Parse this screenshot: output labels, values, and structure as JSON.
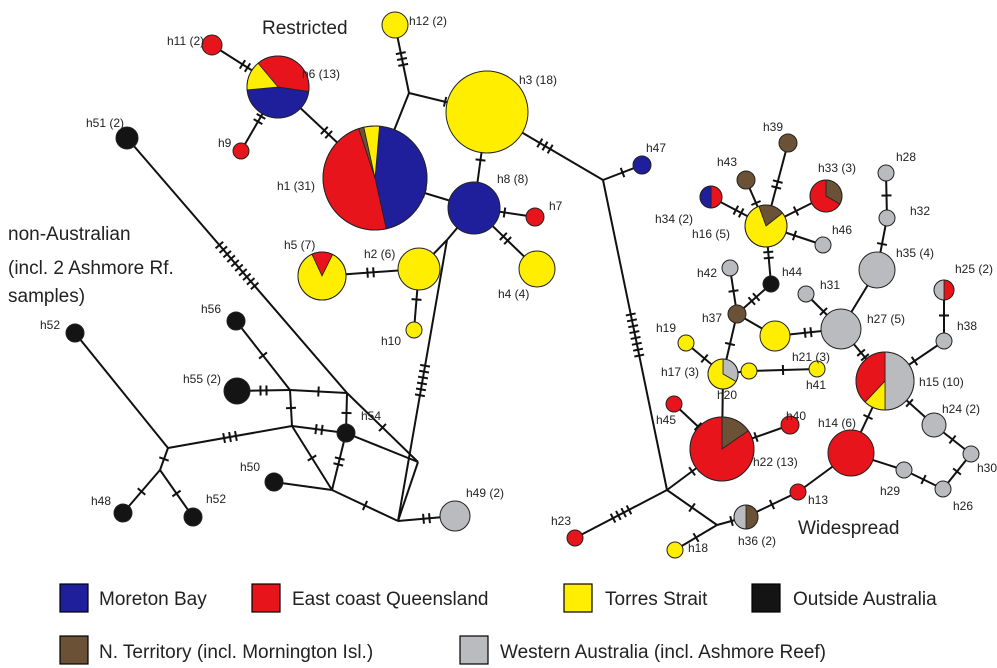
{
  "colors": {
    "Moreton Bay": "#1f1f9c",
    "East coast Queensland": "#e8141b",
    "Torres Strait": "#ffee00",
    "Outside Australia": "#141414",
    "N. Territory": "#6b5236",
    "Western Australia": "#b9bbbe"
  },
  "group_labels": {
    "restricted": "Restricted",
    "non_australian": [
      "non-Australian",
      "(incl. 2 Ashmore Rf.",
      "samples)"
    ],
    "widespread": "Widespread"
  },
  "haplotypes": [
    {
      "id": "h1",
      "label": "h1 (31)",
      "n": 31,
      "shares": {
        "Moreton Bay": 14,
        "East coast Queensland": 15,
        "Torres Strait": 1.5,
        "N. Territory": 0.5
      }
    },
    {
      "id": "h2",
      "label": "h2 (6)",
      "n": 6,
      "shares": {
        "Torres Strait": 6
      }
    },
    {
      "id": "h3",
      "label": "h3 (18)",
      "n": 18,
      "shares": {
        "Torres Strait": 18
      }
    },
    {
      "id": "h4",
      "label": "h4 (4)",
      "n": 4,
      "shares": {
        "Torres Strait": 4
      }
    },
    {
      "id": "h5",
      "label": "h5 (7)",
      "n": 7,
      "shares": {
        "Torres Strait": 6,
        "East coast Queensland": 1
      }
    },
    {
      "id": "h6",
      "label": "h6 (13)",
      "n": 13,
      "shares": {
        "Moreton Bay": 6,
        "East coast Queensland": 5,
        "Torres Strait": 2
      }
    },
    {
      "id": "h7",
      "label": "h7",
      "n": 1,
      "shares": {
        "East coast Queensland": 1
      }
    },
    {
      "id": "h8",
      "label": "h8 (8)",
      "n": 8,
      "shares": {
        "Moreton Bay": 8
      }
    },
    {
      "id": "h9",
      "label": "h9",
      "n": 1,
      "shares": {
        "East coast Queensland": 1
      }
    },
    {
      "id": "h10",
      "label": "h10",
      "n": 1,
      "shares": {
        "Torres Strait": 1
      }
    },
    {
      "id": "h11",
      "label": "h11 (2)",
      "n": 2,
      "shares": {
        "East coast Queensland": 2
      }
    },
    {
      "id": "h12",
      "label": "h12 (2)",
      "n": 2,
      "shares": {
        "Torres Strait": 2
      }
    },
    {
      "id": "h13",
      "label": "h13",
      "n": 1,
      "shares": {
        "East coast Queensland": 1
      }
    },
    {
      "id": "h14",
      "label": "h14 (6)",
      "n": 6,
      "shares": {
        "East coast Queensland": 6
      }
    },
    {
      "id": "h15",
      "label": "h15 (10)",
      "n": 10,
      "shares": {
        "Western Australia": 5,
        "Torres Strait": 1.2,
        "East coast Queensland": 3.8
      }
    },
    {
      "id": "h16",
      "label": "h16 (5)",
      "n": 5,
      "shares": {
        "Torres Strait": 4,
        "N. Territory": 1
      }
    },
    {
      "id": "h17",
      "label": "h17 (3)",
      "n": 3,
      "shares": {
        "Torres Strait": 2,
        "Western Australia": 1
      }
    },
    {
      "id": "h18",
      "label": "h18",
      "n": 1,
      "shares": {
        "Torres Strait": 1
      }
    },
    {
      "id": "h19",
      "label": "h19",
      "n": 1,
      "shares": {
        "Torres Strait": 1
      }
    },
    {
      "id": "h20",
      "label": "h20",
      "n": 1,
      "shares": {
        "Torres Strait": 1
      }
    },
    {
      "id": "h21",
      "label": "h21 (3)",
      "n": 3,
      "shares": {
        "Torres Strait": 3
      }
    },
    {
      "id": "h22",
      "label": "h22 (13)",
      "n": 13,
      "shares": {
        "N. Territory": 2,
        "East coast Queensland": 11
      }
    },
    {
      "id": "h23",
      "label": "h23",
      "n": 1,
      "shares": {
        "East coast Queensland": 1
      }
    },
    {
      "id": "h24",
      "label": "h24 (2)",
      "n": 2,
      "shares": {
        "Western Australia": 2
      }
    },
    {
      "id": "h25",
      "label": "h25 (2)",
      "n": 2,
      "shares": {
        "Western Australia": 1,
        "East coast Queensland": 1
      }
    },
    {
      "id": "h26",
      "label": "h26",
      "n": 1,
      "shares": {
        "Western Australia": 1
      }
    },
    {
      "id": "h27",
      "label": "h27 (5)",
      "n": 5,
      "shares": {
        "Western Australia": 5
      }
    },
    {
      "id": "h28",
      "label": "h28",
      "n": 1,
      "shares": {
        "Western Australia": 1
      }
    },
    {
      "id": "h29",
      "label": "h29",
      "n": 1,
      "shares": {
        "Western Australia": 1
      }
    },
    {
      "id": "h30",
      "label": "h30",
      "n": 1,
      "shares": {
        "Western Australia": 1
      }
    },
    {
      "id": "h31",
      "label": "h31",
      "n": 1,
      "shares": {
        "Western Australia": 1
      }
    },
    {
      "id": "h32",
      "label": "h32",
      "n": 1,
      "shares": {
        "Western Australia": 1
      }
    },
    {
      "id": "h33",
      "label": "h33 (3)",
      "n": 3,
      "shares": {
        "N. Territory": 1,
        "East coast Queensland": 2
      }
    },
    {
      "id": "h34",
      "label": "h34 (2)",
      "n": 2,
      "shares": {
        "Moreton Bay": 1,
        "East coast Queensland": 1
      }
    },
    {
      "id": "h35",
      "label": "h35 (4)",
      "n": 4,
      "shares": {
        "Western Australia": 4
      }
    },
    {
      "id": "h36",
      "label": "h36 (2)",
      "n": 2,
      "shares": {
        "N. Territory": 1,
        "Western Australia": 1
      }
    },
    {
      "id": "h37",
      "label": "h37",
      "n": 1,
      "shares": {
        "N. Territory": 1
      }
    },
    {
      "id": "h38",
      "label": "h38",
      "n": 1,
      "shares": {
        "Western Australia": 1
      }
    },
    {
      "id": "h39",
      "label": "h39",
      "n": 1,
      "shares": {
        "N. Territory": 1
      }
    },
    {
      "id": "h40",
      "label": "h40",
      "n": 1,
      "shares": {
        "East coast Queensland": 1
      }
    },
    {
      "id": "h41",
      "label": "h41",
      "n": 1,
      "shares": {
        "Torres Strait": 1
      }
    },
    {
      "id": "h42",
      "label": "h42",
      "n": 1,
      "shares": {
        "Western Australia": 1
      }
    },
    {
      "id": "h43",
      "label": "h43",
      "n": 1,
      "shares": {
        "N. Territory": 1
      }
    },
    {
      "id": "h44",
      "label": "h44",
      "n": 1,
      "shares": {
        "Outside Australia": 1
      }
    },
    {
      "id": "h45",
      "label": "h45",
      "n": 1,
      "shares": {
        "East coast Queensland": 1
      }
    },
    {
      "id": "h46",
      "label": "h46",
      "n": 1,
      "shares": {
        "Western Australia": 1
      }
    },
    {
      "id": "h47",
      "label": "h47",
      "n": 1,
      "shares": {
        "Moreton Bay": 1
      }
    },
    {
      "id": "h48",
      "label": "h48",
      "n": 1,
      "shares": {
        "Outside Australia": 1
      }
    },
    {
      "id": "h49",
      "label": "h49 (2)",
      "n": 2,
      "shares": {
        "Western Australia": 2
      }
    },
    {
      "id": "h50",
      "label": "h50",
      "n": 1,
      "shares": {
        "Outside Australia": 1
      }
    },
    {
      "id": "h51",
      "label": "h51 (2)",
      "n": 2,
      "shares": {
        "Outside Australia": 2
      }
    },
    {
      "id": "h52a",
      "label": "h52",
      "n": 1,
      "shares": {
        "Outside Australia": 1
      }
    },
    {
      "id": "h52b",
      "label": "h52",
      "n": 1,
      "shares": {
        "Outside Australia": 1
      }
    },
    {
      "id": "h54",
      "label": "h54",
      "n": 1,
      "shares": {
        "Outside Australia": 1
      }
    },
    {
      "id": "h55",
      "label": "h55 (2)",
      "n": 2,
      "shares": {
        "Outside Australia": 2
      }
    },
    {
      "id": "h56",
      "label": "h56",
      "n": 1,
      "shares": {
        "Outside Australia": 1
      }
    }
  ],
  "legend": [
    {
      "region": "Moreton Bay",
      "label": "Moreton Bay"
    },
    {
      "region": "East coast Queensland",
      "label": "East coast Queensland"
    },
    {
      "region": "Torres Strait",
      "label": "Torres Strait"
    },
    {
      "region": "Outside Australia",
      "label": "Outside Australia"
    },
    {
      "region": "N. Territory",
      "label": "N. Territory (incl. Mornington Isl.)"
    },
    {
      "region": "Western Australia",
      "label": "Western Australia (incl. Ashmore Reef)"
    }
  ]
}
